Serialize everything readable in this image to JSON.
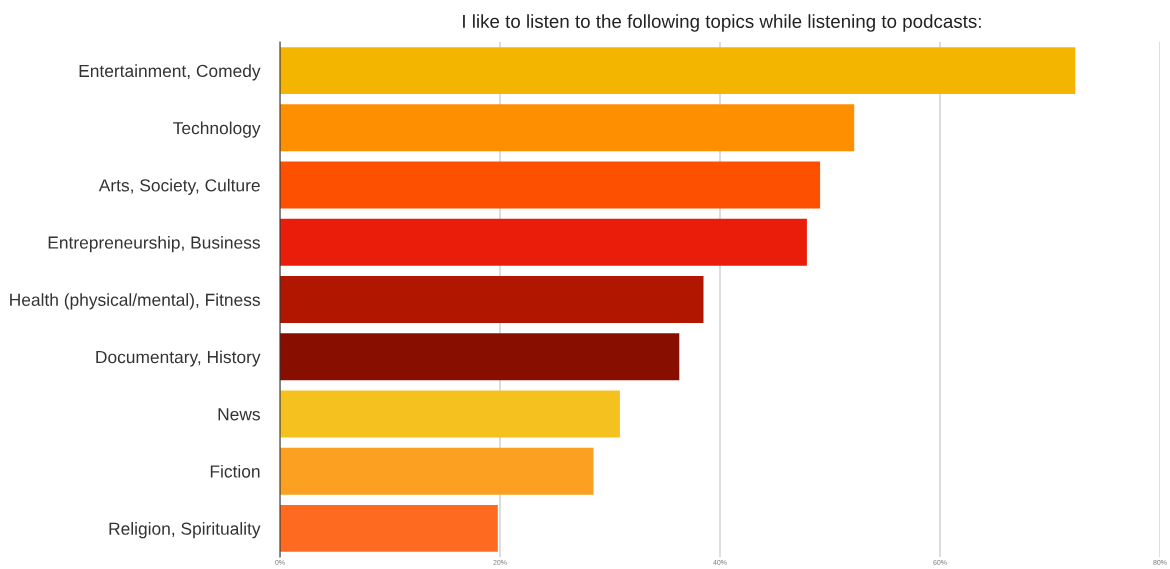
{
  "chart_data": {
    "type": "bar",
    "orientation": "horizontal",
    "title": "I like to listen to the following topics while listening to podcasts:",
    "categories": [
      "Entertainment, Comedy",
      "Technology",
      "Arts, Society, Culture",
      "Entrepreneurship, Business",
      "Health (physical/mental), Fitness",
      "Documentary, History",
      "News",
      "Fiction",
      "Religion, Spirituality"
    ],
    "values": [
      72.3,
      52.2,
      49.1,
      47.9,
      38.5,
      36.3,
      30.9,
      28.5,
      19.8
    ],
    "colors": [
      "#f3b500",
      "#fe8f00",
      "#fd5000",
      "#ea1d0b",
      "#b11700",
      "#880f00",
      "#f5c11e",
      "#fca021",
      "#fe6b20"
    ],
    "xlim": [
      0,
      80
    ],
    "xticks": [
      {
        "value": 0,
        "label": "0%"
      },
      {
        "value": 20,
        "label": "20%"
      },
      {
        "value": 40,
        "label": "40%"
      },
      {
        "value": 60,
        "label": "60%"
      },
      {
        "value": 80,
        "label": "80%"
      }
    ],
    "grid": "x",
    "legend": false
  }
}
